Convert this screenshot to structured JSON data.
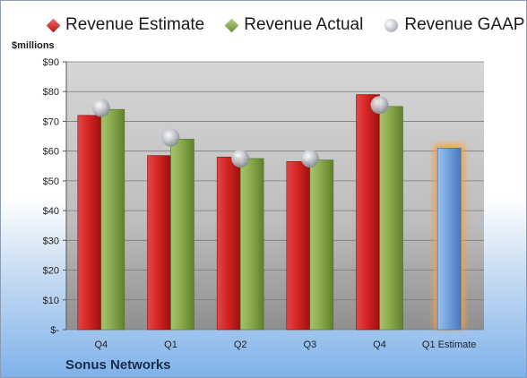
{
  "company": "Sonus Networks",
  "legend": {
    "estimate": "Revenue Estimate",
    "actual": "Revenue Actual",
    "gaap": "Revenue GAAP"
  },
  "colors": {
    "estimate": "#c81e1e",
    "actual": "#86a84a",
    "gaap": "#b0b6be",
    "forecast": "#6fa0dc",
    "forecast_glow": "#f5a040",
    "plot_bg_top": "#d4d4d4",
    "plot_bg_bottom": "#9a9a9a"
  },
  "chart_data": {
    "type": "bar",
    "ylabel": "$millions",
    "ylim": [
      0,
      90
    ],
    "yticks": [
      0,
      10,
      20,
      30,
      40,
      50,
      60,
      70,
      80,
      90
    ],
    "ytick_labels": [
      "$-",
      "$10",
      "$20",
      "$30",
      "$40",
      "$50",
      "$60",
      "$70",
      "$80",
      "$90"
    ],
    "categories": [
      "Q4",
      "Q1",
      "Q2",
      "Q3",
      "Q4",
      "Q1 Estimate"
    ],
    "grid": true,
    "legend_position": "top",
    "series": [
      {
        "name": "Revenue Estimate",
        "values": [
          72,
          58.5,
          58,
          56.5,
          79,
          null
        ]
      },
      {
        "name": "Revenue Actual",
        "values": [
          74,
          64,
          57.5,
          57,
          75,
          61
        ]
      },
      {
        "name": "Revenue GAAP",
        "values": [
          74.5,
          64.5,
          57.5,
          57.5,
          75.5,
          null
        ]
      }
    ]
  }
}
